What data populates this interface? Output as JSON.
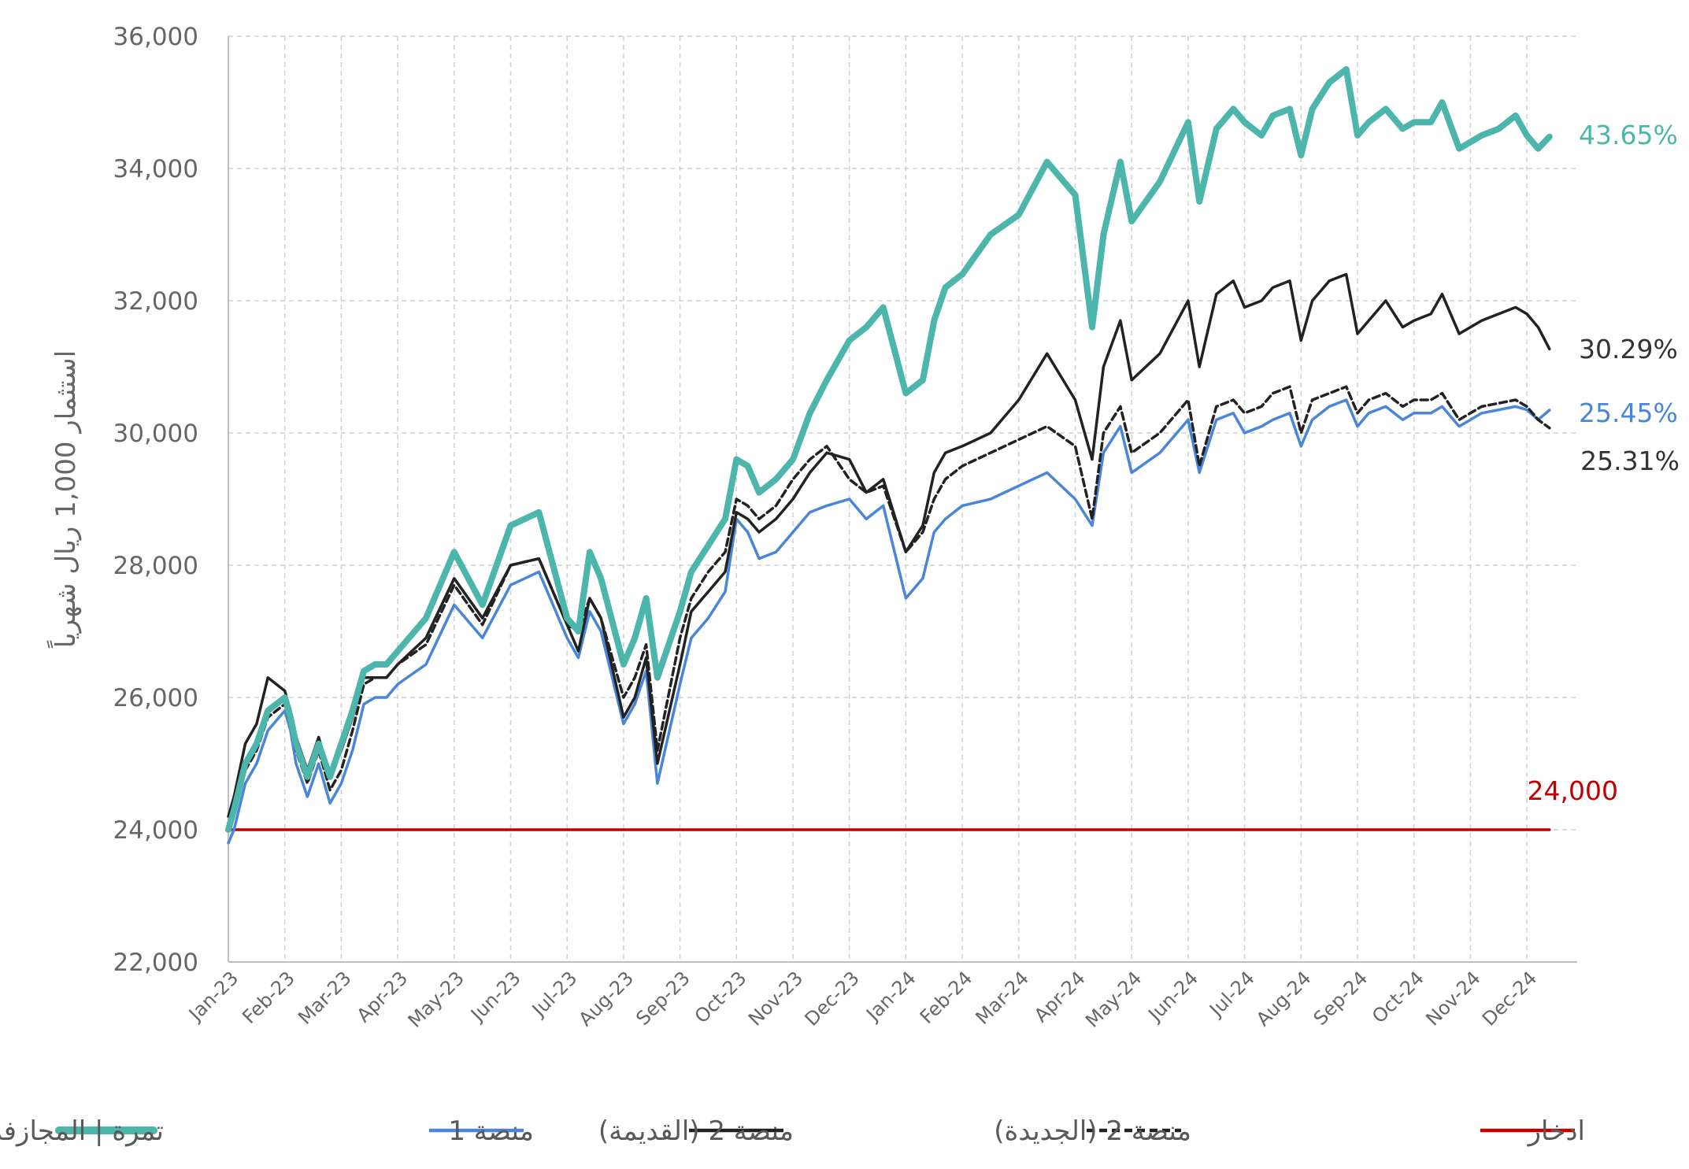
{
  "chart_data": {
    "type": "line",
    "title": "",
    "ylabel": "استثمار 1,000 ريال شهرياً",
    "xlabel": "",
    "ylim": [
      22000,
      36000
    ],
    "yticks": [
      22000,
      24000,
      26000,
      28000,
      30000,
      32000,
      34000,
      36000
    ],
    "ytick_labels": [
      "22,000",
      "24,000",
      "26,000",
      "28,000",
      "30,000",
      "32,000",
      "34,000",
      "36,000"
    ],
    "categories": [
      "Jan-23",
      "Feb-23",
      "Mar-23",
      "Apr-23",
      "May-23",
      "Jun-23",
      "Jul-23",
      "Aug-23",
      "Sep-23",
      "Oct-23",
      "Nov-23",
      "Dec-23",
      "Jan-24",
      "Feb-24",
      "Mar-24",
      "Apr-24",
      "May-24",
      "Jun-24",
      "Jul-24",
      "Aug-24",
      "Sep-24",
      "Oct-24",
      "Nov-24",
      "Dec-24"
    ],
    "grid": true,
    "legend_position": "bottom",
    "series": [
      {
        "name": "تمرة | المجازفة",
        "color": "#4db6ac",
        "style": "solid",
        "weight": "thick",
        "end_label": "43.65%",
        "x": [
          0,
          0.1,
          0.3,
          0.5,
          0.7,
          1,
          1.1,
          1.2,
          1.4,
          1.6,
          1.8,
          2,
          2.2,
          2.4,
          2.6,
          2.8,
          3,
          3.5,
          4,
          4.5,
          5,
          5.5,
          6,
          6.2,
          6.4,
          6.6,
          7,
          7.2,
          7.4,
          7.6,
          8,
          8.2,
          8.5,
          8.8,
          9,
          9.2,
          9.4,
          9.7,
          10,
          10.3,
          10.6,
          11,
          11.3,
          11.6,
          12,
          12.3,
          12.5,
          12.7,
          13,
          13.5,
          14,
          14.5,
          15,
          15.3,
          15.5,
          15.8,
          16,
          16.5,
          17,
          17.2,
          17.5,
          17.8,
          18,
          18.3,
          18.5,
          18.8,
          19,
          19.2,
          19.5,
          19.8,
          20,
          20.2,
          20.5,
          20.8,
          21,
          21.3,
          21.5,
          21.8,
          22,
          22.2,
          22.5,
          22.8,
          23,
          23.2,
          23.4
        ],
        "values": [
          24000,
          24300,
          25000,
          25300,
          25800,
          26000,
          25700,
          25300,
          24800,
          25300,
          24800,
          25300,
          25800,
          26400,
          26500,
          26500,
          26700,
          27200,
          28200,
          27400,
          28600,
          28800,
          27200,
          27000,
          28200,
          27800,
          26500,
          26900,
          27500,
          26300,
          27300,
          27900,
          28300,
          28700,
          29600,
          29500,
          29100,
          29300,
          29600,
          30300,
          30800,
          31400,
          31600,
          31900,
          30600,
          30800,
          31700,
          32200,
          32400,
          33000,
          33300,
          34100,
          33600,
          31600,
          33000,
          34100,
          33200,
          33800,
          34700,
          33500,
          34600,
          34900,
          34700,
          34500,
          34800,
          34900,
          34200,
          34900,
          35300,
          35500,
          34500,
          34700,
          34900,
          34600,
          34700,
          34700,
          35000,
          34300,
          34400,
          34500,
          34600,
          34800,
          34500,
          34300,
          34480
        ]
      },
      {
        "name": "منصة 1",
        "color": "#4a86d8",
        "style": "solid",
        "weight": "normal",
        "end_label": "25.45%",
        "x": [
          0,
          0.1,
          0.3,
          0.5,
          0.7,
          1,
          1.1,
          1.2,
          1.4,
          1.6,
          1.8,
          2,
          2.2,
          2.4,
          2.6,
          2.8,
          3,
          3.5,
          4,
          4.5,
          5,
          5.5,
          6,
          6.2,
          6.4,
          6.6,
          7,
          7.2,
          7.4,
          7.6,
          8,
          8.2,
          8.5,
          8.8,
          9,
          9.2,
          9.4,
          9.7,
          10,
          10.3,
          10.6,
          11,
          11.3,
          11.6,
          12,
          12.3,
          12.5,
          12.7,
          13,
          13.5,
          14,
          14.5,
          15,
          15.3,
          15.5,
          15.8,
          16,
          16.5,
          17,
          17.2,
          17.5,
          17.8,
          18,
          18.3,
          18.5,
          18.8,
          19,
          19.2,
          19.5,
          19.8,
          20,
          20.2,
          20.5,
          20.8,
          21,
          21.3,
          21.5,
          21.8,
          22,
          22.2,
          22.5,
          22.8,
          23,
          23.2,
          23.4
        ],
        "values": [
          23800,
          24000,
          24700,
          25000,
          25500,
          25800,
          25500,
          25000,
          24500,
          25000,
          24400,
          24700,
          25200,
          25900,
          26000,
          26000,
          26200,
          26500,
          27400,
          26900,
          27700,
          27900,
          26900,
          26600,
          27300,
          27000,
          25600,
          25900,
          26400,
          24700,
          26200,
          26900,
          27200,
          27600,
          28700,
          28500,
          28100,
          28200,
          28500,
          28800,
          28900,
          29000,
          28700,
          28900,
          27500,
          27800,
          28500,
          28700,
          28900,
          29000,
          29200,
          29400,
          29000,
          28600,
          29700,
          30100,
          29400,
          29700,
          30200,
          29400,
          30200,
          30300,
          30000,
          30100,
          30200,
          30300,
          29800,
          30200,
          30400,
          30500,
          30100,
          30300,
          30400,
          30200,
          30300,
          30300,
          30400,
          30100,
          30200,
          30300,
          30350,
          30400,
          30350,
          30200,
          30345
        ]
      },
      {
        "name": "منصة 2 (القديمة)",
        "color": "#222222",
        "style": "solid",
        "weight": "normal",
        "end_label": "30.29%",
        "x": [
          0,
          0.1,
          0.3,
          0.5,
          0.7,
          1,
          1.1,
          1.2,
          1.4,
          1.6,
          1.8,
          2,
          2.2,
          2.4,
          2.6,
          2.8,
          3,
          3.5,
          4,
          4.5,
          5,
          5.5,
          6,
          6.2,
          6.4,
          6.6,
          7,
          7.2,
          7.4,
          7.6,
          8,
          8.2,
          8.5,
          8.8,
          9,
          9.2,
          9.4,
          9.7,
          10,
          10.3,
          10.6,
          11,
          11.3,
          11.6,
          12,
          12.3,
          12.5,
          12.7,
          13,
          13.5,
          14,
          14.5,
          15,
          15.3,
          15.5,
          15.8,
          16,
          16.5,
          17,
          17.2,
          17.5,
          17.8,
          18,
          18.3,
          18.5,
          18.8,
          19,
          19.2,
          19.5,
          19.8,
          20,
          20.2,
          20.5,
          20.8,
          21,
          21.3,
          21.5,
          21.8,
          22,
          22.2,
          22.5,
          22.8,
          23,
          23.2,
          23.4
        ],
        "values": [
          24200,
          24500,
          25300,
          25600,
          26300,
          26100,
          25800,
          25400,
          24900,
          25400,
          24800,
          25200,
          25700,
          26300,
          26300,
          26300,
          26500,
          26900,
          27800,
          27200,
          28000,
          28100,
          27100,
          26700,
          27500,
          27200,
          25700,
          26000,
          26600,
          25000,
          26500,
          27300,
          27600,
          27900,
          28800,
          28700,
          28500,
          28700,
          29000,
          29400,
          29700,
          29600,
          29100,
          29300,
          28200,
          28600,
          29400,
          29700,
          29800,
          30000,
          30500,
          31200,
          30500,
          29600,
          31000,
          31700,
          30800,
          31200,
          32000,
          31000,
          32100,
          32300,
          31900,
          32000,
          32200,
          32300,
          31400,
          32000,
          32300,
          32400,
          31500,
          31700,
          32000,
          31600,
          31700,
          31800,
          32100,
          31500,
          31600,
          31700,
          31800,
          31900,
          31800,
          31600,
          31270
        ]
      },
      {
        "name": "منصة 2 (الجديدة)",
        "color": "#222222",
        "style": "dashed",
        "weight": "normal",
        "end_label": "25.31%",
        "x": [
          0,
          0.1,
          0.3,
          0.5,
          0.7,
          1,
          1.1,
          1.2,
          1.4,
          1.6,
          1.8,
          2,
          2.2,
          2.4,
          2.6,
          2.8,
          3,
          3.5,
          4,
          4.5,
          5,
          5.5,
          6,
          6.2,
          6.4,
          6.6,
          7,
          7.2,
          7.4,
          7.6,
          8,
          8.2,
          8.5,
          8.8,
          9,
          9.2,
          9.4,
          9.7,
          10,
          10.3,
          10.6,
          11,
          11.3,
          11.6,
          12,
          12.3,
          12.5,
          12.7,
          13,
          13.5,
          14,
          14.5,
          15,
          15.3,
          15.5,
          15.8,
          16,
          16.5,
          17,
          17.2,
          17.5,
          17.8,
          18,
          18.3,
          18.5,
          18.8,
          19,
          19.2,
          19.5,
          19.8,
          20,
          20.2,
          20.5,
          20.8,
          21,
          21.3,
          21.5,
          21.8,
          22,
          22.2,
          22.5,
          22.8,
          23,
          23.2,
          23.4
        ],
        "values": [
          24100,
          24300,
          24900,
          25200,
          25700,
          25900,
          25600,
          25200,
          24700,
          25200,
          24600,
          24900,
          25500,
          26200,
          26300,
          26300,
          26500,
          26800,
          27700,
          27100,
          28000,
          28100,
          27100,
          27000,
          27500,
          27200,
          26000,
          26300,
          26800,
          25200,
          26900,
          27500,
          27900,
          28200,
          29000,
          28900,
          28700,
          28900,
          29300,
          29600,
          29800,
          29300,
          29100,
          29200,
          28200,
          28500,
          29000,
          29300,
          29500,
          29700,
          29900,
          30100,
          29800,
          28700,
          30000,
          30400,
          29700,
          30000,
          30500,
          29500,
          30400,
          30500,
          30300,
          30400,
          30600,
          30700,
          30000,
          30500,
          30600,
          30700,
          30300,
          30500,
          30600,
          30400,
          30500,
          30500,
          30600,
          30200,
          30300,
          30400,
          30450,
          30500,
          30400,
          30200,
          30075
        ]
      },
      {
        "name": "ادخار",
        "color": "#c00000",
        "style": "solid",
        "weight": "normal",
        "end_label": "24,000",
        "x": [
          0,
          23.4
        ],
        "values": [
          24000,
          24000
        ]
      }
    ]
  }
}
